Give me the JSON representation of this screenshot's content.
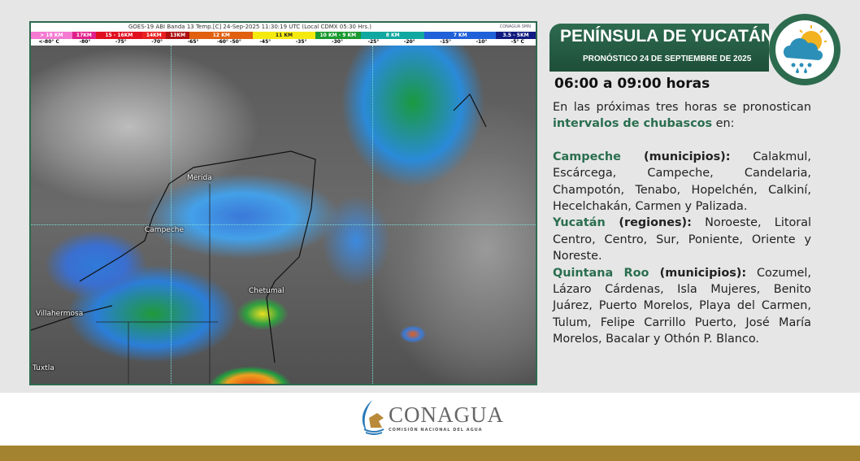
{
  "satellite": {
    "header": "GOES-19 ABI Banda 13 Temp.[C] 24-Sep-2025 11:30:19 UTC (Local CDMX  05:30 Hrs.)",
    "logos": "CONAGUA  SMN",
    "bands": [
      {
        "label": "> 18 KM",
        "color": "#f57ad2"
      },
      {
        "label": "17KM",
        "color": "#e0208a"
      },
      {
        "label": "15 - 16KM",
        "color": "#e01020"
      },
      {
        "label": "14KM",
        "color": "#e82020"
      },
      {
        "label": "13KM",
        "color": "#b01010"
      },
      {
        "label": "12 KM",
        "color": "#e06010"
      },
      {
        "label": "11 KM",
        "color": "#f5ea10"
      },
      {
        "label": "10 KM - 9 KM",
        "color": "#1a9a30"
      },
      {
        "label": "8 KM",
        "color": "#10a8a0"
      },
      {
        "label": "7 KM",
        "color": "#2060d8"
      },
      {
        "label": "3.5 - 5KM",
        "color": "#101a80"
      }
    ],
    "temps": [
      "<-80° C",
      "-80°",
      "-75°",
      "-70°",
      "-65°",
      "-60° -50°",
      "-45°",
      "-35°",
      "-30°",
      "-25°",
      "-20°",
      "-15°",
      "-10°",
      "-5° C"
    ],
    "cities": [
      "Merida",
      "Campeche",
      "Chetumal",
      "Villahermosa",
      "Tuxtla"
    ]
  },
  "banner": {
    "title": "PENÍNSULA DE YUCATÁN",
    "subtitle": "PRONÓSTICO 24 DE SEPTIEMBRE DE 2025",
    "icon": "sun-cloud-rain-icon"
  },
  "hours": "06:00 a 09:00 horas",
  "intro": {
    "pre": "En las próximas tres horas se pronostican ",
    "highlight": "intervalos de chubascos",
    "post": " en:"
  },
  "states": [
    {
      "name": "Campeche",
      "kind": " (municipios):",
      "list": " Calakmul, Escárcega, Campeche, Candelaria, Champotón, Tenabo, Hopelchén, Calkiní, Hecelchakán, Carmen y Palizada."
    },
    {
      "name": "Yucatán",
      "kind": " (regiones):",
      "list": " Noroeste, Litoral Centro, Centro, Sur, Poniente, Oriente y Noreste."
    },
    {
      "name": "Quintana Roo",
      "kind": " (municipios):",
      "list": " Cozumel, Lázaro Cárdenas, Isla Mujeres, Benito Juárez, Puerto Morelos, Playa del Carmen, Tulum, Felipe Carrillo Puerto, José María Morelos, Bacalar y Othón P. Blanco."
    }
  ],
  "footer": {
    "logo_name": "CONAGUA",
    "logo_sub": "COMISIÓN NACIONAL DEL AGUA",
    "bar_color": "#a3832f"
  }
}
